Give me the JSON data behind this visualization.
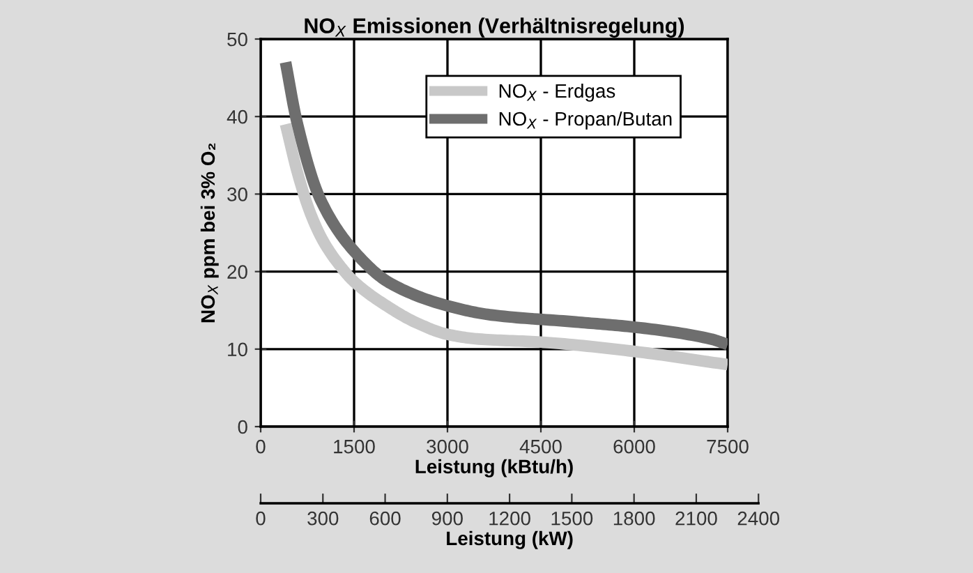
{
  "chart_data": {
    "type": "line",
    "title": "NO$_{X}$ Emissionen (Verhältnisregelung)",
    "xlabel": "Leistung (kBtu/h)",
    "ylabel": "NO$_{X}$ ppm bei 3% O₂",
    "x2label": "Leistung (kW)",
    "xlim": [
      0,
      7500
    ],
    "xticks": [
      0,
      1500,
      3000,
      4500,
      6000,
      7500
    ],
    "ylim": [
      0,
      50
    ],
    "yticks": [
      0,
      10,
      20,
      30,
      40,
      50
    ],
    "x2lim": [
      0,
      2400
    ],
    "x2ticks": [
      0,
      300,
      600,
      900,
      1200,
      1500,
      1800,
      2100,
      2400
    ],
    "grid": true,
    "legend": "top right",
    "series": [
      {
        "name": "NO$_{X}$ - Erdgas",
        "color": "#c8c8c8",
        "x": [
          400,
          600,
          800,
          1000,
          1250,
          1500,
          2000,
          2500,
          3000,
          3500,
          4500,
          6000,
          7500
        ],
        "values": [
          39,
          32.5,
          27.5,
          24,
          21,
          18.7,
          15.7,
          13.4,
          11.9,
          11.3,
          10.9,
          9.7,
          8
        ]
      },
      {
        "name": "NO$_{X}$ - Propan/Butan",
        "color": "#6e6e6e",
        "x": [
          400,
          580,
          960,
          1560,
          2080,
          3040,
          3710,
          5060,
          6040,
          7230,
          7500
        ],
        "values": [
          47,
          39.4,
          29.3,
          22.1,
          18.5,
          15.5,
          14.4,
          13.5,
          12.8,
          11.3,
          10.6
        ]
      }
    ]
  }
}
